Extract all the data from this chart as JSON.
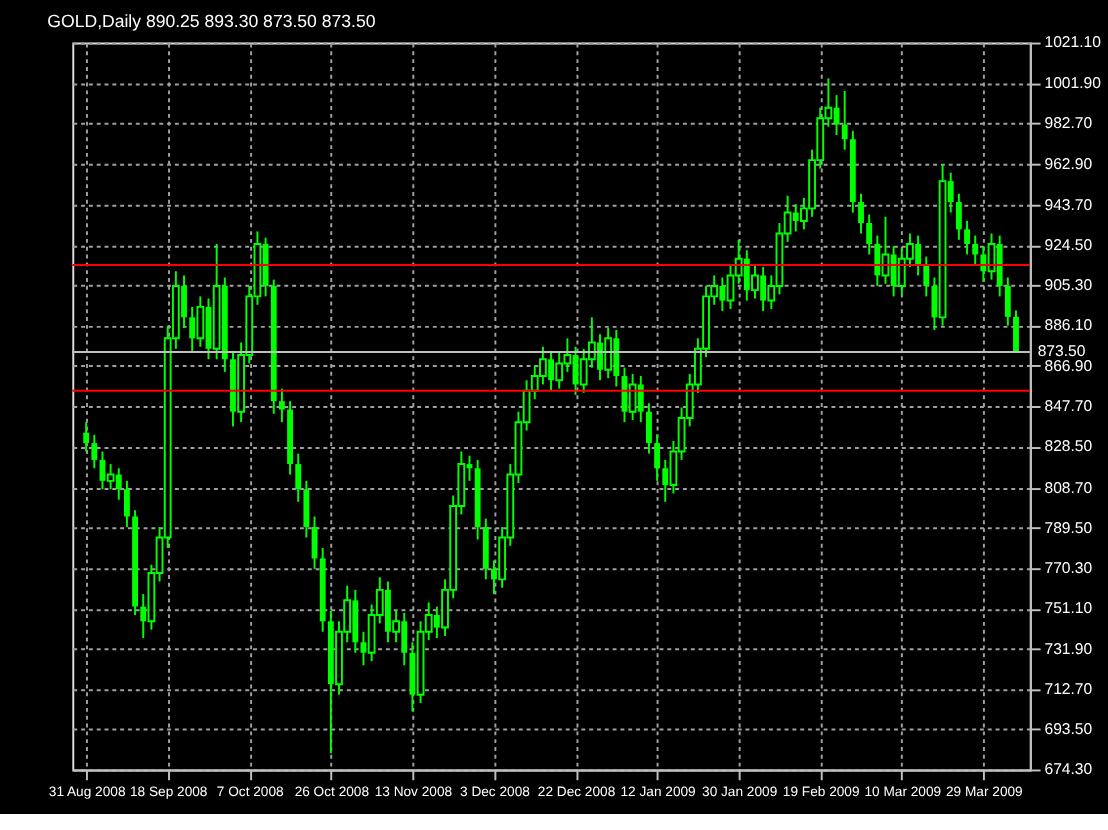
{
  "chart_data": {
    "type": "candlestick",
    "title": "GOLD,Daily  890.25 893.30 873.50 873.50",
    "categories": [
      "31 Aug 2008",
      null,
      null,
      null,
      null,
      null,
      null,
      null,
      null,
      null,
      "18 Sep 2008",
      null,
      null,
      null,
      null,
      null,
      null,
      null,
      null,
      null,
      "7 Oct 2008",
      null,
      null,
      null,
      null,
      null,
      null,
      null,
      null,
      null,
      "26 Oct 2008",
      null,
      null,
      null,
      null,
      null,
      null,
      null,
      null,
      null,
      "13 Nov 2008",
      null,
      null,
      null,
      null,
      null,
      null,
      null,
      null,
      null,
      "3 Dec 2008",
      null,
      null,
      null,
      null,
      null,
      null,
      null,
      null,
      null,
      "22 Dec 2008",
      null,
      null,
      null,
      null,
      null,
      null,
      null,
      null,
      null,
      "12 Jan 2009",
      null,
      null,
      null,
      null,
      null,
      null,
      null,
      null,
      null,
      "30 Jan 2009",
      null,
      null,
      null,
      null,
      null,
      null,
      null,
      null,
      null,
      "19 Feb 2009",
      null,
      null,
      null,
      null,
      null,
      null,
      null,
      null,
      null,
      "10 Mar 2009",
      null,
      null,
      null,
      null,
      null,
      null,
      null,
      null,
      null,
      "29 Mar 2009",
      null,
      null,
      null,
      null
    ],
    "series": [
      {
        "type": "candlestick",
        "color": "#00ff00",
        "ohlc": [
          [
            835,
            840,
            826,
            830
          ],
          [
            830,
            834,
            818,
            822
          ],
          [
            822,
            826,
            808,
            812
          ],
          [
            812,
            820,
            808,
            815
          ],
          [
            815,
            818,
            803,
            808
          ],
          [
            808,
            812,
            790,
            795
          ],
          [
            795,
            798,
            748,
            752
          ],
          [
            752,
            758,
            737,
            745
          ],
          [
            745,
            772,
            741,
            768
          ],
          [
            768,
            790,
            764,
            785
          ],
          [
            785,
            886,
            780,
            880
          ],
          [
            880,
            912,
            875,
            905
          ],
          [
            905,
            910,
            885,
            890
          ],
          [
            890,
            895,
            874,
            880
          ],
          [
            880,
            900,
            876,
            895
          ],
          [
            895,
            899,
            870,
            875
          ],
          [
            875,
            925,
            870,
            905
          ],
          [
            905,
            909,
            864,
            870
          ],
          [
            870,
            874,
            838,
            845
          ],
          [
            845,
            878,
            840,
            872
          ],
          [
            872,
            905,
            868,
            900
          ],
          [
            900,
            931,
            896,
            925
          ],
          [
            925,
            928,
            900,
            905
          ],
          [
            905,
            908,
            844,
            850
          ],
          [
            850,
            856,
            840,
            846
          ],
          [
            846,
            850,
            815,
            820
          ],
          [
            820,
            825,
            802,
            808
          ],
          [
            808,
            812,
            785,
            790
          ],
          [
            790,
            795,
            770,
            775
          ],
          [
            775,
            780,
            740,
            745
          ],
          [
            745,
            750,
            682,
            715
          ],
          [
            715,
            745,
            710,
            740
          ],
          [
            740,
            762,
            735,
            755
          ],
          [
            755,
            760,
            730,
            735
          ],
          [
            735,
            740,
            724,
            730
          ],
          [
            730,
            753,
            726,
            748
          ],
          [
            748,
            766,
            744,
            760
          ],
          [
            760,
            764,
            735,
            740
          ],
          [
            740,
            750,
            735,
            745
          ],
          [
            745,
            749,
            724,
            730
          ],
          [
            730,
            735,
            702,
            710
          ],
          [
            710,
            745,
            706,
            740
          ],
          [
            740,
            754,
            736,
            748
          ],
          [
            748,
            752,
            737,
            742
          ],
          [
            742,
            765,
            738,
            760
          ],
          [
            760,
            805,
            756,
            800
          ],
          [
            800,
            826,
            796,
            820
          ],
          [
            820,
            824,
            812,
            818
          ],
          [
            818,
            822,
            784,
            790
          ],
          [
            790,
            794,
            765,
            770
          ],
          [
            770,
            774,
            758,
            765
          ],
          [
            765,
            790,
            761,
            785
          ],
          [
            785,
            820,
            781,
            815
          ],
          [
            815,
            845,
            811,
            840
          ],
          [
            840,
            860,
            836,
            855
          ],
          [
            855,
            867,
            851,
            862
          ],
          [
            862,
            876,
            858,
            870
          ],
          [
            870,
            874,
            855,
            860
          ],
          [
            860,
            873,
            856,
            868
          ],
          [
            868,
            880,
            864,
            872
          ],
          [
            872,
            876,
            853,
            858
          ],
          [
            858,
            875,
            854,
            870
          ],
          [
            870,
            890,
            866,
            878
          ],
          [
            878,
            882,
            860,
            865
          ],
          [
            865,
            885,
            861,
            880
          ],
          [
            880,
            884,
            857,
            862
          ],
          [
            862,
            866,
            840,
            845
          ],
          [
            845,
            863,
            841,
            858
          ],
          [
            858,
            862,
            840,
            845
          ],
          [
            845,
            849,
            825,
            830
          ],
          [
            830,
            834,
            812,
            818
          ],
          [
            818,
            822,
            802,
            810
          ],
          [
            810,
            831,
            806,
            826
          ],
          [
            826,
            847,
            822,
            842
          ],
          [
            842,
            863,
            838,
            858
          ],
          [
            858,
            880,
            854,
            875
          ],
          [
            875,
            905,
            871,
            900
          ],
          [
            900,
            910,
            896,
            905
          ],
          [
            905,
            909,
            893,
            898
          ],
          [
            898,
            915,
            894,
            910
          ],
          [
            910,
            927,
            906,
            918
          ],
          [
            918,
            922,
            898,
            903
          ],
          [
            903,
            915,
            899,
            910
          ],
          [
            910,
            914,
            893,
            898
          ],
          [
            898,
            910,
            894,
            905
          ],
          [
            905,
            935,
            901,
            930
          ],
          [
            930,
            948,
            926,
            940
          ],
          [
            940,
            944,
            931,
            936
          ],
          [
            936,
            947,
            932,
            942
          ],
          [
            942,
            970,
            938,
            965
          ],
          [
            965,
            990,
            961,
            985
          ],
          [
            985,
            1004,
            981,
            990
          ],
          [
            990,
            996,
            977,
            982
          ],
          [
            982,
            998,
            970,
            975
          ],
          [
            975,
            979,
            940,
            945
          ],
          [
            945,
            949,
            930,
            935
          ],
          [
            935,
            939,
            920,
            925
          ],
          [
            925,
            929,
            905,
            910
          ],
          [
            910,
            938,
            906,
            920
          ],
          [
            920,
            924,
            900,
            905
          ],
          [
            905,
            923,
            901,
            918
          ],
          [
            918,
            930,
            914,
            925
          ],
          [
            925,
            929,
            910,
            915
          ],
          [
            915,
            919,
            900,
            905
          ],
          [
            905,
            909,
            884,
            890
          ],
          [
            890,
            963,
            886,
            955
          ],
          [
            955,
            959,
            940,
            945
          ],
          [
            945,
            949,
            927,
            932
          ],
          [
            932,
            936,
            920,
            925
          ],
          [
            925,
            929,
            915,
            920
          ],
          [
            920,
            924,
            907,
            912
          ],
          [
            912,
            930,
            908,
            925
          ],
          [
            925,
            929,
            900,
            905
          ],
          [
            905,
            909,
            886,
            890.25
          ],
          [
            890.25,
            893.3,
            873.5,
            873.5
          ]
        ]
      }
    ],
    "ylim": [
      674.3,
      1021.1
    ],
    "yticks": [
      {
        "value": 674.3,
        "label": "674.30"
      },
      {
        "value": 693.5,
        "label": "693.50"
      },
      {
        "value": 712.7,
        "label": "712.70"
      },
      {
        "value": 731.9,
        "label": "731.90"
      },
      {
        "value": 751.1,
        "label": "751.10"
      },
      {
        "value": 770.3,
        "label": "770.30"
      },
      {
        "value": 789.5,
        "label": "789.50"
      },
      {
        "value": 808.7,
        "label": "808.70"
      },
      {
        "value": 828.5,
        "label": "828.50"
      },
      {
        "value": 847.7,
        "label": "847.70"
      },
      {
        "value": 866.9,
        "label": "866.90"
      },
      {
        "value": 886.1,
        "label": "886.10"
      },
      {
        "value": 905.3,
        "label": "905.30"
      },
      {
        "value": 924.5,
        "label": "924.50"
      },
      {
        "value": 943.7,
        "label": "943.70"
      },
      {
        "value": 962.9,
        "label": "962.90"
      },
      {
        "value": 982.7,
        "label": "982.70"
      },
      {
        "value": 1001.9,
        "label": "1001.90"
      },
      {
        "value": 1021.1,
        "label": "1021.10"
      }
    ],
    "ref_lines": [
      {
        "axis": "y",
        "value": 915,
        "color": "#ff0000"
      },
      {
        "axis": "y",
        "value": 855,
        "color": "#ff0000"
      },
      {
        "axis": "y",
        "value": 873.5,
        "label": "873.50",
        "color": "#c0c0c0"
      }
    ],
    "grid": true
  }
}
